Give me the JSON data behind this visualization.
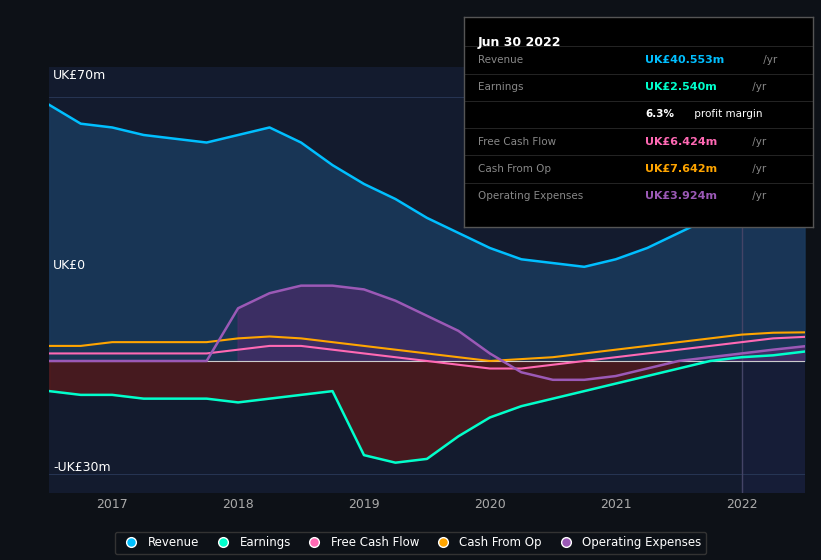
{
  "bg_color": "#0d1117",
  "plot_bg_color": "#131b2e",
  "ylabel_top": "UK£70m",
  "ylabel_zero": "UK£0",
  "ylabel_bottom": "-UK£30m",
  "xticks_labels": [
    "2017",
    "2018",
    "2019",
    "2020",
    "2021",
    "2022"
  ],
  "x": [
    2016.5,
    2016.75,
    2017.0,
    2017.25,
    2017.5,
    2017.75,
    2018.0,
    2018.25,
    2018.5,
    2018.75,
    2019.0,
    2019.25,
    2019.5,
    2019.75,
    2020.0,
    2020.25,
    2020.5,
    2020.75,
    2021.0,
    2021.25,
    2021.5,
    2021.75,
    2022.0,
    2022.25,
    2022.5
  ],
  "revenue": [
    68,
    63,
    62,
    60,
    59,
    58,
    60,
    62,
    58,
    52,
    47,
    43,
    38,
    34,
    30,
    27,
    26,
    25,
    27,
    30,
    34,
    38,
    40,
    42,
    40.5
  ],
  "earnings": [
    -8,
    -9,
    -9,
    -10,
    -10,
    -10,
    -11,
    -10,
    -9,
    -8,
    -25,
    -27,
    -26,
    -20,
    -15,
    -12,
    -10,
    -8,
    -6,
    -4,
    -2,
    0,
    1,
    1.5,
    2.5
  ],
  "free_cash_flow": [
    2,
    2,
    2,
    2,
    2,
    2,
    3,
    4,
    4,
    3,
    2,
    1,
    0,
    -1,
    -2,
    -2,
    -1,
    0,
    1,
    2,
    3,
    4,
    5,
    6,
    6.4
  ],
  "cash_from_op": [
    4,
    4,
    5,
    5,
    5,
    5,
    6,
    6.5,
    6,
    5,
    4,
    3,
    2,
    1,
    0,
    0.5,
    1,
    2,
    3,
    4,
    5,
    6,
    7,
    7.5,
    7.6
  ],
  "operating_expenses": [
    0,
    0,
    0,
    0,
    0,
    0,
    14,
    18,
    20,
    20,
    19,
    16,
    12,
    8,
    2,
    -3,
    -5,
    -5,
    -4,
    -2,
    0,
    1,
    2,
    3,
    3.9
  ],
  "revenue_color": "#00bfff",
  "earnings_color": "#00ffcc",
  "free_cash_flow_color": "#ff69b4",
  "cash_from_op_color": "#ffa500",
  "operating_expenses_color": "#9b59b6",
  "revenue_fill_color": "#1a3a5c",
  "earnings_fill_neg_color": "#5c1a1a",
  "op_exp_fill_color": "#4a2c6a",
  "gridline_color": "#2a3a5a",
  "zero_line_color": "#cccccc",
  "info_box": {
    "bg": "#000000",
    "border": "#555555",
    "title": "Jun 30 2022",
    "rows": [
      {
        "label": "Revenue",
        "value": "UK£40.553m",
        "value_color": "#00bfff"
      },
      {
        "label": "Earnings",
        "value": "UK£2.540m",
        "value_color": "#00ffcc"
      },
      {
        "label": "",
        "value": "6.3% profit margin",
        "value_color": "#ffffff"
      },
      {
        "label": "Free Cash Flow",
        "value": "UK£6.424m",
        "value_color": "#ff69b4"
      },
      {
        "label": "Cash From Op",
        "value": "UK£7.642m",
        "value_color": "#ffa500"
      },
      {
        "label": "Operating Expenses",
        "value": "UK£3.924m",
        "value_color": "#9b59b6"
      }
    ]
  },
  "legend": [
    {
      "label": "Revenue",
      "color": "#00bfff"
    },
    {
      "label": "Earnings",
      "color": "#00ffcc"
    },
    {
      "label": "Free Cash Flow",
      "color": "#ff69b4"
    },
    {
      "label": "Cash From Op",
      "color": "#ffa500"
    },
    {
      "label": "Operating Expenses",
      "color": "#9b59b6"
    }
  ],
  "vline_x": 2022.0,
  "vline_color": "#444466",
  "xlim": [
    2016.5,
    2022.5
  ],
  "ylim": [
    -35,
    78
  ]
}
